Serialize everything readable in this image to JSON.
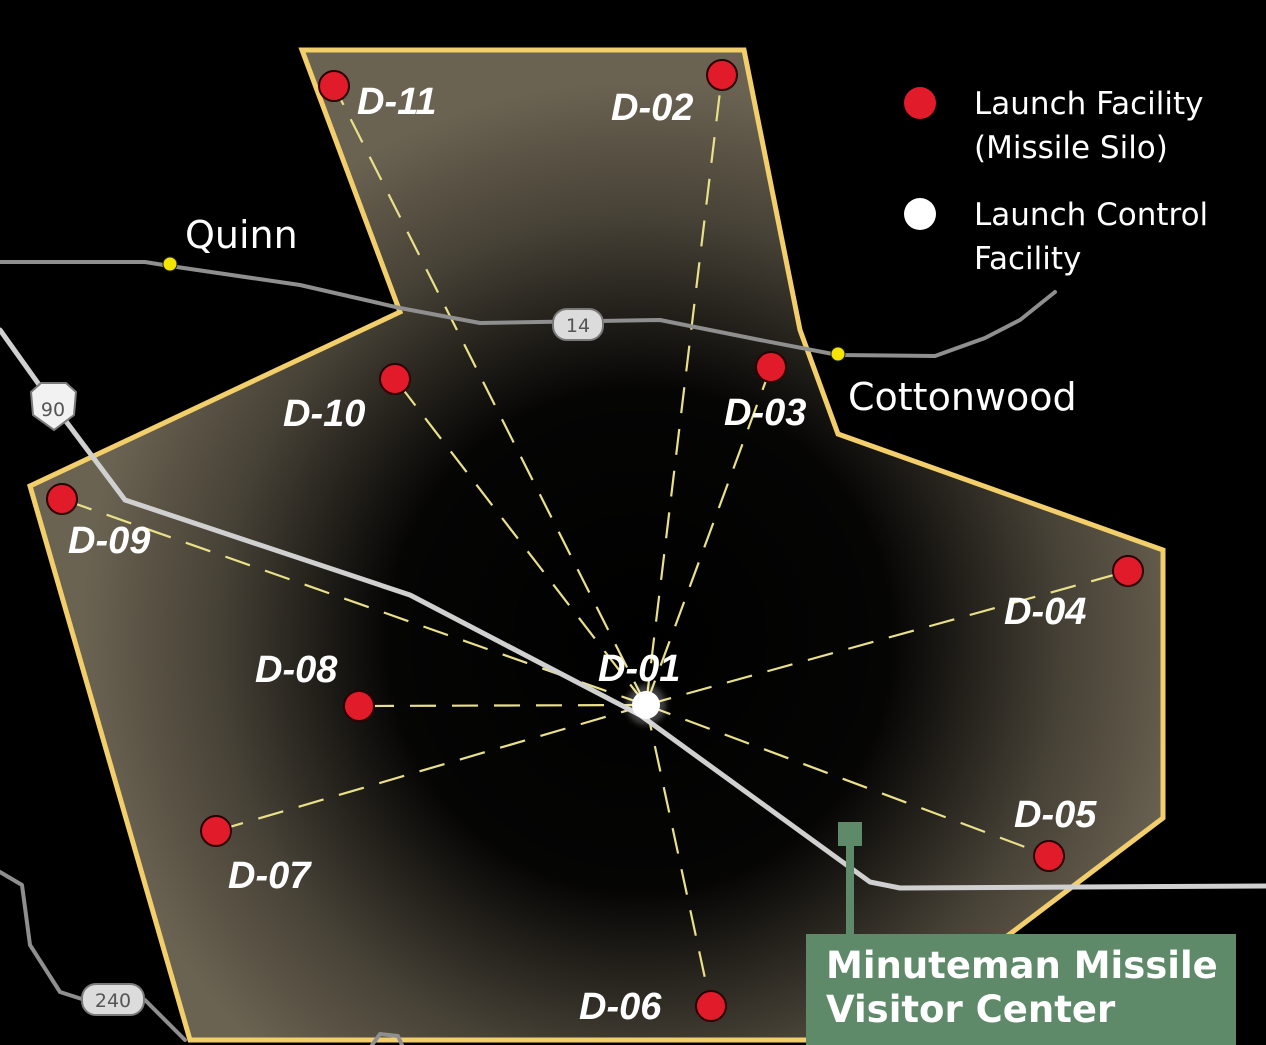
{
  "legend": {
    "launch_facility_line1": "Launch Facility",
    "launch_facility_line2": "(Missile Silo)",
    "control_facility_line1": "Launch Control",
    "control_facility_line2": "Facility"
  },
  "towns": {
    "quinn": "Quinn",
    "cottonwood": "Cottonwood"
  },
  "highways": {
    "interstate_90": "90",
    "route_14": "14",
    "route_240": "240"
  },
  "control_facility": "D-01",
  "silos": {
    "d02": "D-02",
    "d03": "D-03",
    "d04": "D-04",
    "d05": "D-05",
    "d06": "D-06",
    "d07": "D-07",
    "d08": "D-08",
    "d09": "D-09",
    "d10": "D-10",
    "d11": "D-11"
  },
  "visitor_center": {
    "line1": "Minuteman Missile",
    "line2": "Visitor Center"
  },
  "colors": {
    "silo": "#e21b2b",
    "control": "#ffffff",
    "boundary": "#f2cf6b",
    "town_dot": "#f5e400",
    "visitor_center": "#5f8a69"
  }
}
